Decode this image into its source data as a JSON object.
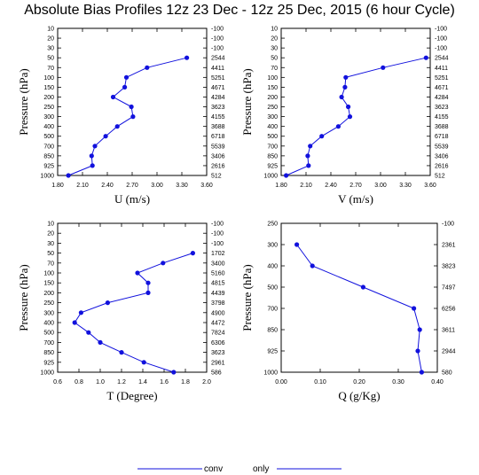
{
  "title": "Absolute Bias Profiles  12z 23 Dec - 12z 25 Dec, 2015 (6 hour Cycle)",
  "legend": {
    "left_text": "conv",
    "right_text": "only"
  },
  "colors": {
    "series": "#1111dd",
    "axes": "#000000"
  },
  "chart_data": [
    {
      "type": "line",
      "ylabel": "Pressure (hPa)",
      "xlabel": "U (m/s)",
      "xlim": [
        1.8,
        3.6
      ],
      "xticks": [
        "1.80",
        "2.10",
        "2.40",
        "2.70",
        "3.00",
        "3.30",
        "3.60"
      ],
      "xtick_values": [
        1.8,
        2.1,
        2.4,
        2.7,
        3.0,
        3.3,
        3.6
      ],
      "levels": [
        "10",
        "20",
        "30",
        "50",
        "70",
        "100",
        "150",
        "200",
        "250",
        "300",
        "400",
        "500",
        "700",
        "850",
        "925",
        "1000"
      ],
      "counts": [
        "-100",
        "-100",
        "-100",
        "2544",
        "4411",
        "5251",
        "4671",
        "4284",
        "3623",
        "4155",
        "3688",
        "6718",
        "5539",
        "3406",
        "2616",
        "512"
      ],
      "points": [
        {
          "level": "50",
          "x": 3.36
        },
        {
          "level": "70",
          "x": 2.88
        },
        {
          "level": "100",
          "x": 2.63
        },
        {
          "level": "150",
          "x": 2.61
        },
        {
          "level": "200",
          "x": 2.47
        },
        {
          "level": "250",
          "x": 2.69
        },
        {
          "level": "300",
          "x": 2.71
        },
        {
          "level": "400",
          "x": 2.52
        },
        {
          "level": "500",
          "x": 2.38
        },
        {
          "level": "700",
          "x": 2.25
        },
        {
          "level": "850",
          "x": 2.21
        },
        {
          "level": "925",
          "x": 2.22
        },
        {
          "level": "1000",
          "x": 1.93
        }
      ]
    },
    {
      "type": "line",
      "ylabel": "Pressure (hPa)",
      "xlabel": "V (m/s)",
      "xlim": [
        1.8,
        3.6
      ],
      "xticks": [
        "1.80",
        "2.10",
        "2.40",
        "2.70",
        "3.00",
        "3.30",
        "3.60"
      ],
      "xtick_values": [
        1.8,
        2.1,
        2.4,
        2.7,
        3.0,
        3.3,
        3.6
      ],
      "levels": [
        "10",
        "20",
        "30",
        "50",
        "70",
        "100",
        "150",
        "200",
        "250",
        "300",
        "400",
        "500",
        "700",
        "850",
        "925",
        "1000"
      ],
      "counts": [
        "-100",
        "-100",
        "-100",
        "2544",
        "4411",
        "5251",
        "4671",
        "4284",
        "3623",
        "4155",
        "3688",
        "6718",
        "5539",
        "3406",
        "2616",
        "512"
      ],
      "points": [
        {
          "level": "50",
          "x": 3.55
        },
        {
          "level": "70",
          "x": 3.03
        },
        {
          "level": "100",
          "x": 2.58
        },
        {
          "level": "150",
          "x": 2.57
        },
        {
          "level": "200",
          "x": 2.53
        },
        {
          "level": "250",
          "x": 2.61
        },
        {
          "level": "300",
          "x": 2.63
        },
        {
          "level": "400",
          "x": 2.49
        },
        {
          "level": "500",
          "x": 2.29
        },
        {
          "level": "700",
          "x": 2.15
        },
        {
          "level": "850",
          "x": 2.12
        },
        {
          "level": "925",
          "x": 2.13
        },
        {
          "level": "1000",
          "x": 1.86
        }
      ]
    },
    {
      "type": "line",
      "ylabel": "Pressure (hPa)",
      "xlabel": "T (Degree)",
      "xlim": [
        0.6,
        2.0
      ],
      "xticks": [
        "0.6",
        "0.8",
        "1.0",
        "1.2",
        "1.4",
        "1.6",
        "1.8",
        "2.0"
      ],
      "xtick_values": [
        0.6,
        0.8,
        1.0,
        1.2,
        1.4,
        1.6,
        1.8,
        2.0
      ],
      "levels": [
        "10",
        "20",
        "30",
        "50",
        "70",
        "100",
        "150",
        "200",
        "250",
        "300",
        "400",
        "500",
        "700",
        "850",
        "925",
        "1000"
      ],
      "counts": [
        "-100",
        "-100",
        "-100",
        "1702",
        "3400",
        "5160",
        "4815",
        "4439",
        "3798",
        "4900",
        "4472",
        "7824",
        "6306",
        "3623",
        "2961",
        "586"
      ],
      "points": [
        {
          "level": "50",
          "x": 1.87
        },
        {
          "level": "70",
          "x": 1.59
        },
        {
          "level": "100",
          "x": 1.35
        },
        {
          "level": "150",
          "x": 1.45
        },
        {
          "level": "200",
          "x": 1.45
        },
        {
          "level": "250",
          "x": 1.07
        },
        {
          "level": "300",
          "x": 0.82
        },
        {
          "level": "400",
          "x": 0.76
        },
        {
          "level": "500",
          "x": 0.89
        },
        {
          "level": "700",
          "x": 1.0
        },
        {
          "level": "850",
          "x": 1.2
        },
        {
          "level": "925",
          "x": 1.41
        },
        {
          "level": "1000",
          "x": 1.69
        }
      ]
    },
    {
      "type": "line",
      "ylabel": "Pressure (hPa)",
      "xlabel": "Q (g/Kg)",
      "xlim": [
        0.0,
        0.4
      ],
      "xticks": [
        "0.00",
        "0.10",
        "0.20",
        "0.30",
        "0.40"
      ],
      "xtick_values": [
        0.0,
        0.1,
        0.2,
        0.3,
        0.4
      ],
      "levels": [
        "250",
        "300",
        "400",
        "500",
        "700",
        "850",
        "925",
        "1000"
      ],
      "counts": [
        "-100",
        "2361",
        "3823",
        "7497",
        "6256",
        "3611",
        "2944",
        "580"
      ],
      "points": [
        {
          "level": "300",
          "x": 0.04
        },
        {
          "level": "400",
          "x": 0.08
        },
        {
          "level": "500",
          "x": 0.21
        },
        {
          "level": "700",
          "x": 0.34
        },
        {
          "level": "850",
          "x": 0.355
        },
        {
          "level": "925",
          "x": 0.35
        },
        {
          "level": "1000",
          "x": 0.36
        }
      ]
    }
  ]
}
